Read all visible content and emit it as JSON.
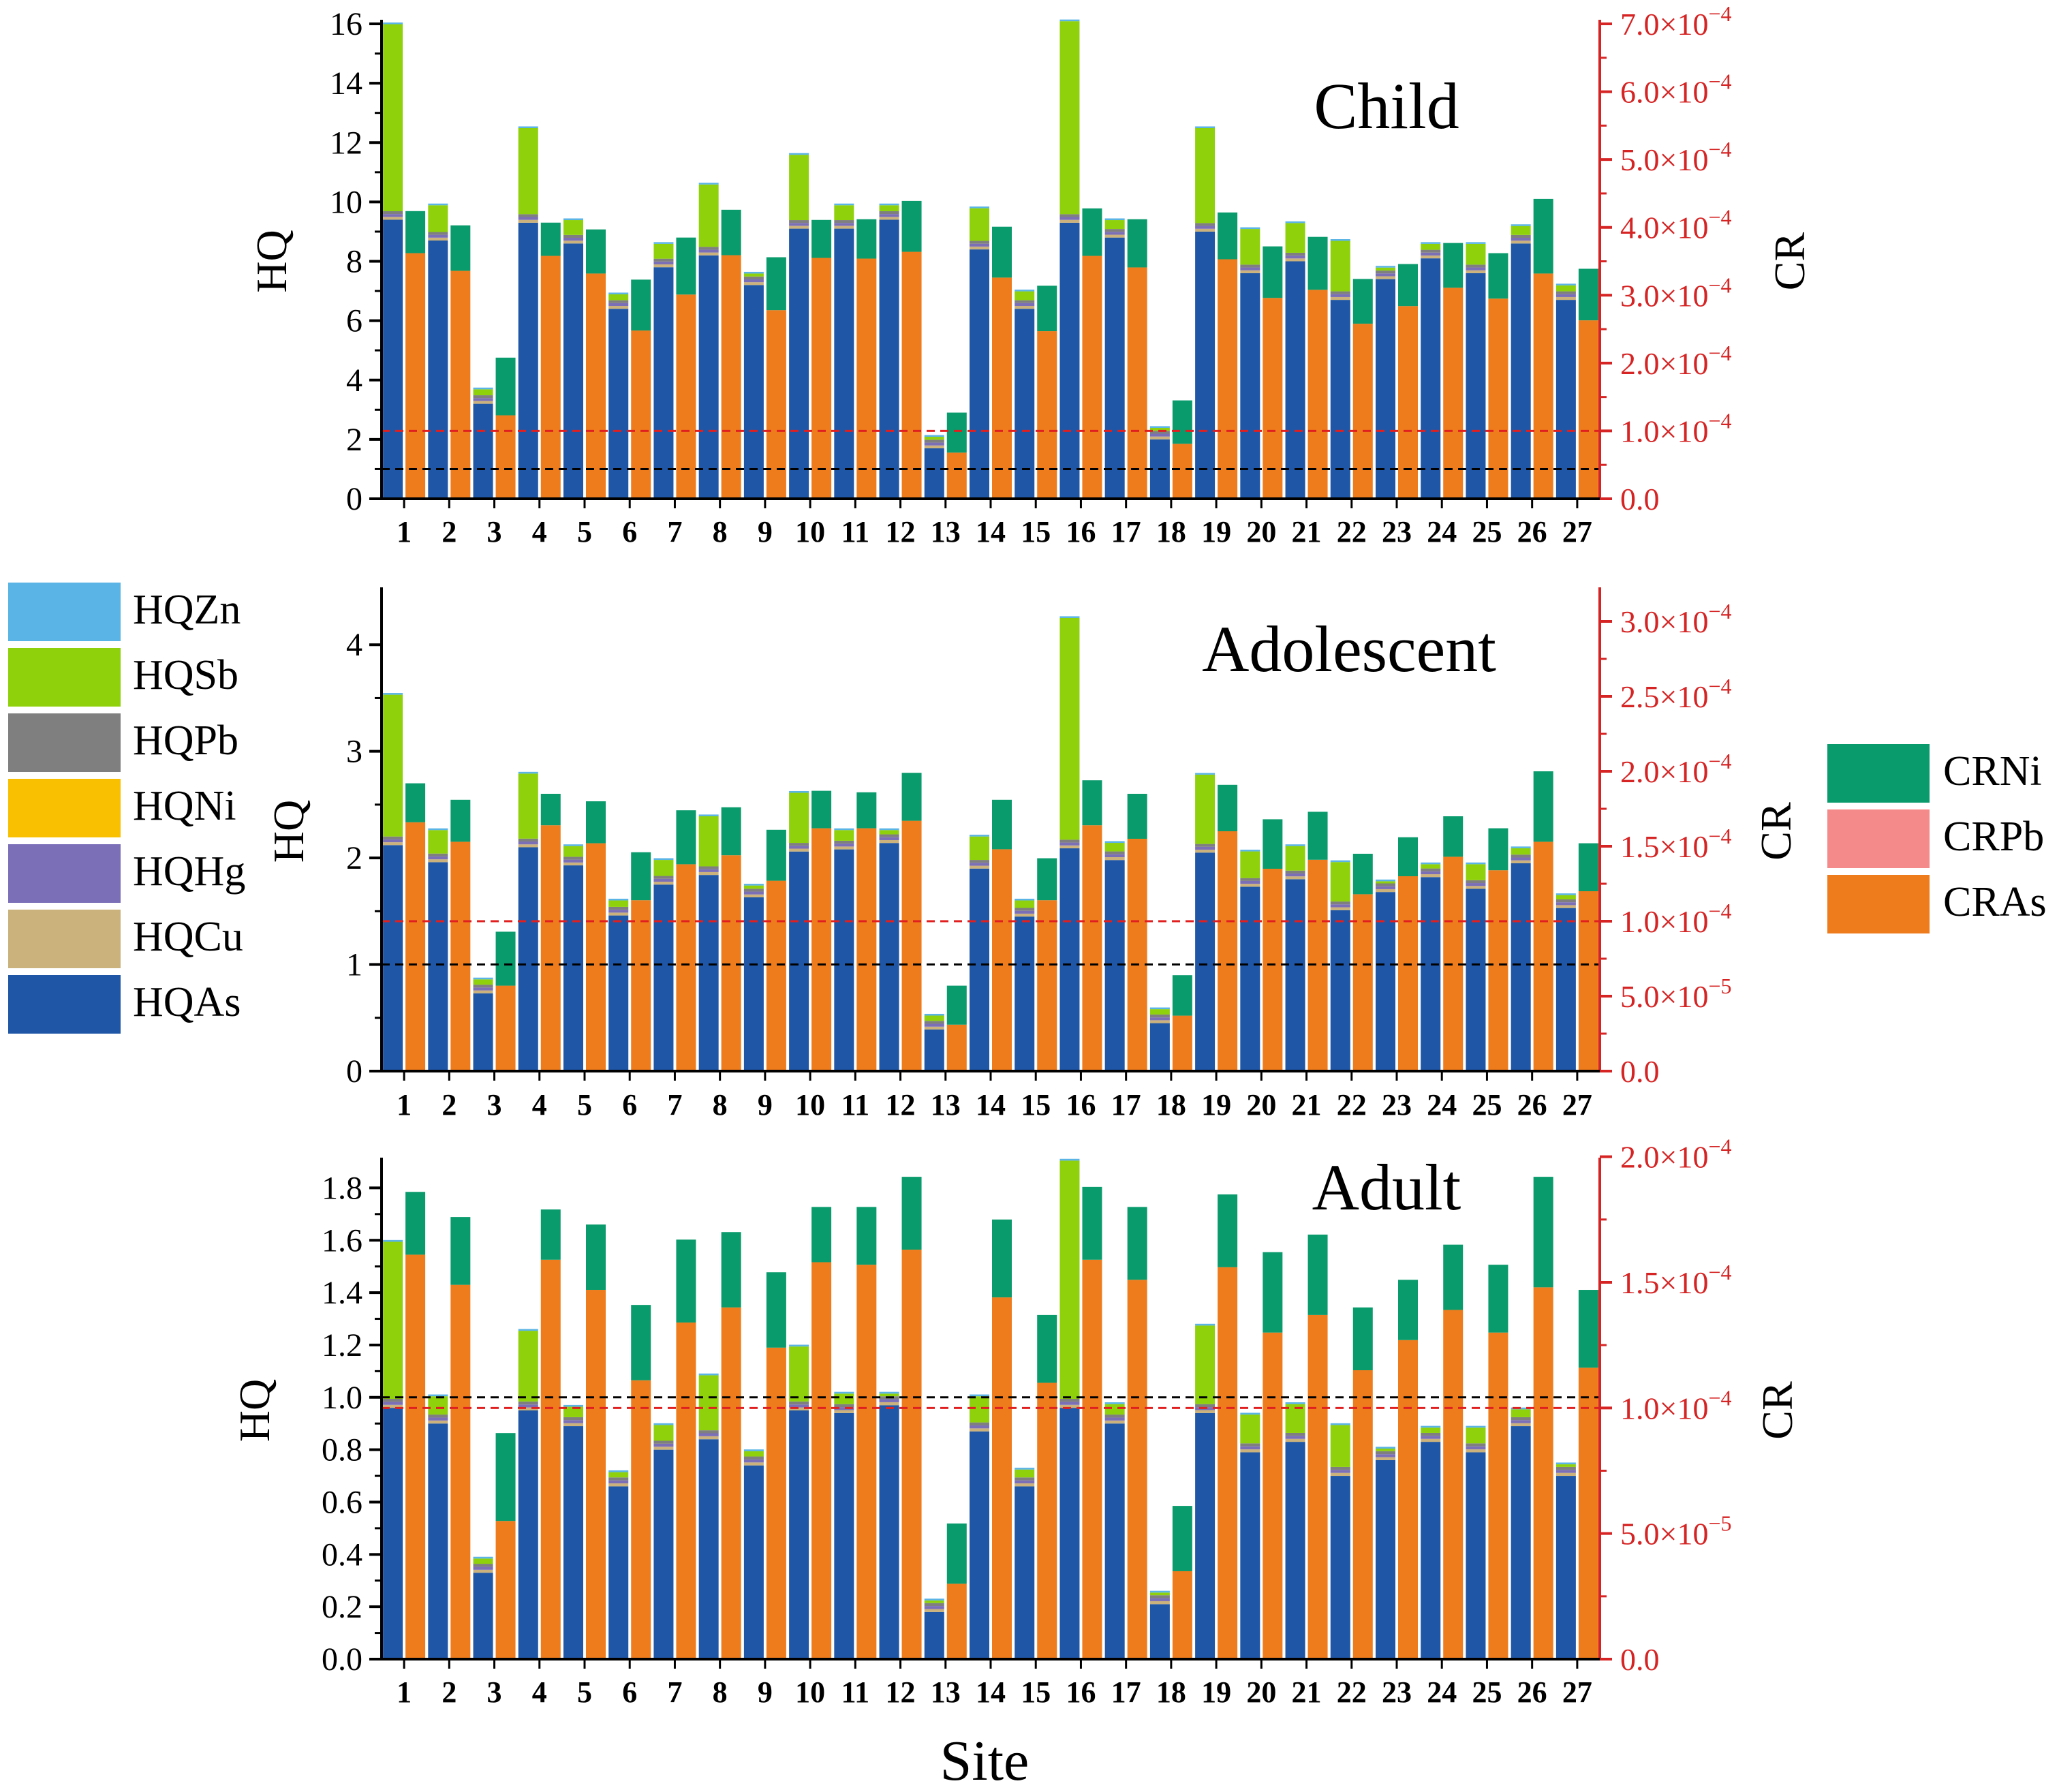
{
  "figure": {
    "xlabel": "Site",
    "sites": [
      "1",
      "2",
      "3",
      "4",
      "5",
      "6",
      "7",
      "8",
      "9",
      "10",
      "11",
      "12",
      "13",
      "14",
      "15",
      "16",
      "17",
      "18",
      "19",
      "20",
      "21",
      "22",
      "23",
      "24",
      "25",
      "26",
      "27"
    ]
  },
  "legend_hq": {
    "items": [
      {
        "label": "HQZn",
        "color": "#5ab4e5"
      },
      {
        "label": "HQSb",
        "color": "#8fd10a"
      },
      {
        "label": "HQPb",
        "color": "#7f7f7f"
      },
      {
        "label": "HQNi",
        "color": "#f8c000"
      },
      {
        "label": "HQHg",
        "color": "#7b6fb8"
      },
      {
        "label": "HQCu",
        "color": "#cbb27c"
      },
      {
        "label": "HQAs",
        "color": "#1f56a6"
      }
    ]
  },
  "legend_cr": {
    "items": [
      {
        "label": "CRNi",
        "color": "#0a9b6c"
      },
      {
        "label": "CRPb",
        "color": "#f58a8a"
      },
      {
        "label": "CRAs",
        "color": "#ef7c1c"
      }
    ]
  },
  "colors": {
    "HQAs": "#1f56a6",
    "HQCu": "#cbb27c",
    "HQHg": "#7b6fb8",
    "HQNi": "#f8c000",
    "HQPb": "#7f7f7f",
    "HQSb": "#8fd10a",
    "HQZn": "#5ab4e5",
    "CRAs": "#ef7c1c",
    "CRPb": "#f58a8a",
    "CRNi": "#0a9b6c",
    "cr_axis": "#d62424",
    "hq_threshold": "#000000",
    "cr_threshold": "#e02020"
  },
  "chart_data": [
    {
      "type": "bar",
      "title": "Child",
      "ylabel_left": "HQ",
      "ylabel_right": "CR",
      "ylim_left": [
        0,
        16
      ],
      "left_ticks": [
        "0",
        "2",
        "4",
        "6",
        "8",
        "10",
        "12",
        "14",
        "16"
      ],
      "ylim_right": [
        0,
        0.0007
      ],
      "right_ticks": [
        {
          "mant": "0.0",
          "exp": ""
        },
        {
          "mant": "1.0×10",
          "exp": "−4"
        },
        {
          "mant": "2.0×10",
          "exp": "−4"
        },
        {
          "mant": "3.0×10",
          "exp": "−4"
        },
        {
          "mant": "4.0×10",
          "exp": "−4"
        },
        {
          "mant": "5.0×10",
          "exp": "−4"
        },
        {
          "mant": "6.0×10",
          "exp": "−4"
        },
        {
          "mant": "7.0×10",
          "exp": "−4"
        }
      ],
      "hq_threshold": 1.0,
      "cr_threshold": 0.0001,
      "hq_as": [
        9.4,
        8.7,
        3.2,
        9.3,
        8.6,
        6.4,
        7.8,
        8.2,
        7.2,
        9.1,
        9.1,
        9.4,
        1.7,
        8.4,
        6.4,
        9.3,
        8.8,
        2.0,
        9.0,
        7.6,
        8.0,
        6.7,
        7.4,
        8.1,
        7.6,
        8.6,
        6.7
      ],
      "hq_sb": [
        6.3,
        0.9,
        0.2,
        2.9,
        0.5,
        0.2,
        0.5,
        2.1,
        0.1,
        2.2,
        0.5,
        0.2,
        0.1,
        1.1,
        0.3,
        6.5,
        0.3,
        0.1,
        3.2,
        1.2,
        1.0,
        1.7,
        0.1,
        0.2,
        0.7,
        0.3,
        0.2
      ],
      "cr_as": [
        0.000362,
        0.000336,
        0.000123,
        0.000358,
        0.000332,
        0.000248,
        0.000301,
        0.000359,
        0.000278,
        0.000355,
        0.000354,
        0.000364,
        6.8e-05,
        0.000326,
        0.000247,
        0.000358,
        0.000341,
        8.1e-05,
        0.000353,
        0.000296,
        0.000308,
        0.000258,
        0.000284,
        0.000311,
        0.000295,
        0.000332,
        0.000263
      ],
      "cr_ni": [
        6.2e-05,
        6.7e-05,
        8.5e-05,
        4.9e-05,
        6.5e-05,
        7.5e-05,
        8.4e-05,
        6.7e-05,
        7.8e-05,
        5.6e-05,
        5.8e-05,
        7.5e-05,
        5.9e-05,
        7.5e-05,
        6.7e-05,
        7e-05,
        7.1e-05,
        6.4e-05,
        6.9e-05,
        7.6e-05,
        7.8e-05,
        6.6e-05,
        6.2e-05,
        6.6e-05,
        6.7e-05,
        0.00011,
        7.6e-05
      ]
    },
    {
      "type": "bar",
      "title": "Adolescent",
      "ylabel_left": "HQ",
      "ylabel_right": "CR",
      "ylim_left": [
        0,
        4.5
      ],
      "left_ticks": [
        "0",
        "1",
        "2",
        "3",
        "4"
      ],
      "ylim_right": [
        0,
        0.00032
      ],
      "right_ticks": [
        {
          "mant": "0.0",
          "exp": ""
        },
        {
          "mant": "5.0×10",
          "exp": "−5"
        },
        {
          "mant": "1.0×10",
          "exp": "−4"
        },
        {
          "mant": "1.5×10",
          "exp": "−4"
        },
        {
          "mant": "2.0×10",
          "exp": "−4"
        },
        {
          "mant": "2.5×10",
          "exp": "−4"
        },
        {
          "mant": "3.0×10",
          "exp": "−4"
        }
      ],
      "hq_threshold": 1.0,
      "cr_threshold": 0.0001,
      "hq_as": [
        2.12,
        1.96,
        0.73,
        2.1,
        1.93,
        1.46,
        1.75,
        1.84,
        1.63,
        2.06,
        2.08,
        2.14,
        0.39,
        1.9,
        1.45,
        2.09,
        1.98,
        0.45,
        2.05,
        1.73,
        1.8,
        1.51,
        1.68,
        1.82,
        1.71,
        1.95,
        1.53
      ],
      "hq_sb": [
        1.33,
        0.22,
        0.05,
        0.61,
        0.1,
        0.06,
        0.15,
        0.47,
        0.03,
        0.47,
        0.1,
        0.04,
        0.05,
        0.22,
        0.07,
        2.08,
        0.08,
        0.05,
        0.65,
        0.25,
        0.23,
        0.37,
        0.02,
        0.04,
        0.15,
        0.06,
        0.04
      ],
      "cr_as": [
        0.000166,
        0.000153,
        5.7e-05,
        0.000164,
        0.000152,
        0.000114,
        0.000138,
        0.000144,
        0.000127,
        0.000162,
        0.000162,
        0.000167,
        3.1e-05,
        0.000148,
        0.000114,
        0.000164,
        0.000155,
        3.7e-05,
        0.00016,
        0.000135,
        0.000141,
        0.000118,
        0.00013,
        0.000143,
        0.000134,
        0.000153,
        0.00012
      ],
      "cr_ni": [
        2.6e-05,
        2.8e-05,
        3.6e-05,
        2.1e-05,
        2.8e-05,
        3.2e-05,
        3.6e-05,
        3.2e-05,
        3.4e-05,
        2.5e-05,
        2.4e-05,
        3.2e-05,
        2.6e-05,
        3.3e-05,
        2.8e-05,
        3e-05,
        3e-05,
        2.7e-05,
        3.1e-05,
        3.3e-05,
        3.2e-05,
        2.7e-05,
        2.6e-05,
        2.7e-05,
        2.8e-05,
        4.7e-05,
        3.2e-05
      ]
    },
    {
      "type": "bar",
      "title": "Adult",
      "ylabel_left": "HQ",
      "ylabel_right": "CR",
      "ylim_left": [
        0,
        1.9
      ],
      "left_ticks": [
        "0.0",
        "0.2",
        "0.4",
        "0.6",
        "0.8",
        "1.0",
        "1.2",
        "1.4",
        "1.6",
        "1.8"
      ],
      "ylim_right": [
        0,
        0.000198
      ],
      "right_ticks": [
        {
          "mant": "0.0",
          "exp": ""
        },
        {
          "mant": "5.0×10",
          "exp": "−5"
        },
        {
          "mant": "1.0×10",
          "exp": "−4"
        },
        {
          "mant": "1.5×10",
          "exp": "−4"
        },
        {
          "mant": "2.0×10",
          "exp": "−4"
        }
      ],
      "hq_threshold": 1.0,
      "cr_threshold": 0.0001,
      "hq_as": [
        0.96,
        0.9,
        0.33,
        0.95,
        0.89,
        0.66,
        0.8,
        0.84,
        0.74,
        0.95,
        0.94,
        0.97,
        0.18,
        0.87,
        0.66,
        0.96,
        0.9,
        0.21,
        0.94,
        0.79,
        0.83,
        0.7,
        0.76,
        0.83,
        0.79,
        0.89,
        0.7
      ],
      "hq_sb": [
        0.6,
        0.07,
        0.02,
        0.27,
        0.04,
        0.02,
        0.06,
        0.21,
        0.02,
        0.21,
        0.04,
        0.01,
        0.01,
        0.1,
        0.03,
        0.91,
        0.04,
        0.01,
        0.3,
        0.11,
        0.11,
        0.16,
        0.01,
        0.02,
        0.06,
        0.03,
        0.01
      ],
      "cr_as": [
        0.000161,
        0.000149,
        5.5e-05,
        0.000159,
        0.000147,
        0.000111,
        0.000134,
        0.00014,
        0.000124,
        0.000158,
        0.000157,
        0.000163,
        3e-05,
        0.000144,
        0.00011,
        0.000159,
        0.000151,
        3.5e-05,
        0.000156,
        0.00013,
        0.000137,
        0.000115,
        0.000127,
        0.000139,
        0.00013,
        0.000148,
        0.000116
      ],
      "cr_ni": [
        2.5e-05,
        2.7e-05,
        3.5e-05,
        2e-05,
        2.6e-05,
        3e-05,
        3.3e-05,
        3e-05,
        3e-05,
        2.2e-05,
        2.3e-05,
        2.9e-05,
        2.4e-05,
        3.1e-05,
        2.7e-05,
        2.9e-05,
        2.9e-05,
        2.6e-05,
        2.9e-05,
        3.2e-05,
        3.2e-05,
        2.5e-05,
        2.4e-05,
        2.6e-05,
        2.7e-05,
        4.4e-05,
        3.1e-05
      ]
    }
  ]
}
